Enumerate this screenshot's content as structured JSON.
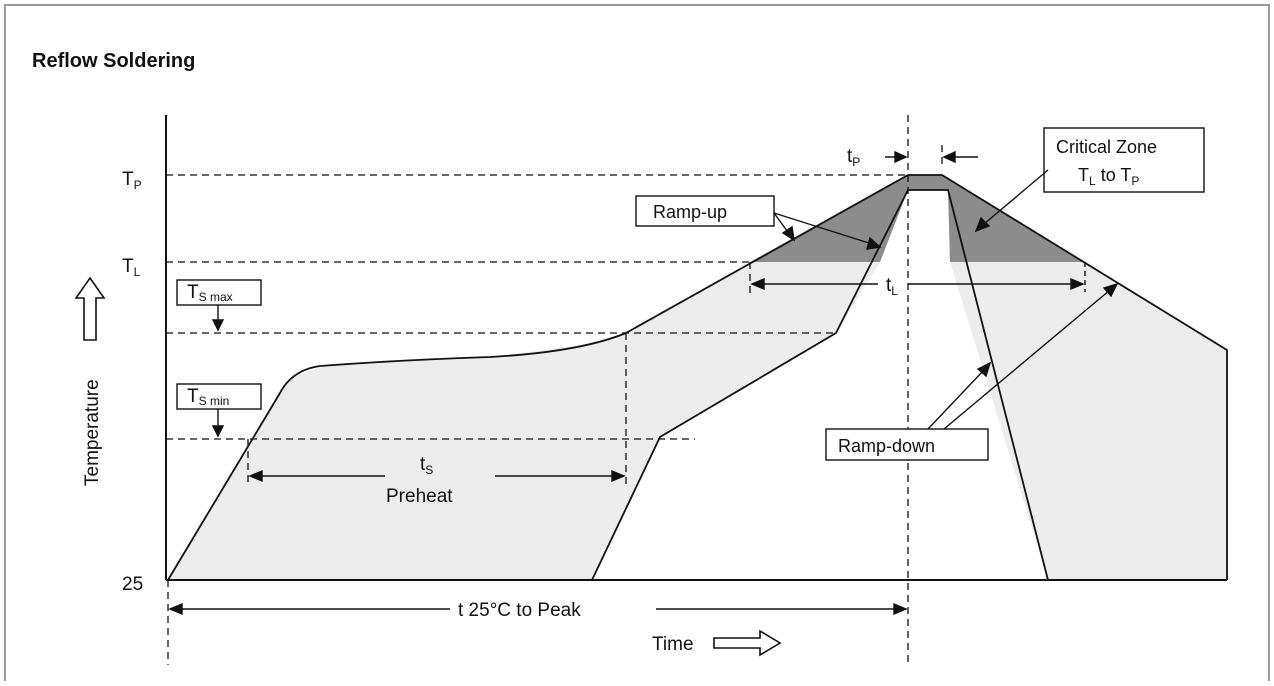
{
  "title": "Reflow Soldering",
  "axes": {
    "y_label": "Temperature",
    "x_label": "Time",
    "y_origin_label": "25"
  },
  "levels": {
    "tp": {
      "main": "T",
      "sub": "P"
    },
    "tl": {
      "main": "T",
      "sub": "L"
    },
    "ts_max": {
      "main": "T",
      "sub": "S max"
    },
    "ts_min": {
      "main": "T",
      "sub": "S min"
    }
  },
  "annotations": {
    "tp_time": {
      "main": "t",
      "sub": "P"
    },
    "tl_time": {
      "main": "t",
      "sub": "L"
    },
    "ts_time": {
      "main": "t",
      "sub": "S"
    },
    "preheat": "Preheat",
    "t25_to_peak": "t 25°C to Peak",
    "ramp_up": "Ramp-up",
    "ramp_down": "Ramp-down",
    "critical_zone_line1": "Critical Zone",
    "critical_zone_line2": {
      "a": "T",
      "a_sub": "L",
      "mid": " to T",
      "b_sub": "P"
    }
  },
  "colors": {
    "line": "#111111",
    "light_fill": "#ececec",
    "critical_fill": "#8c8c8c",
    "frame": "#9a9a9a"
  }
}
